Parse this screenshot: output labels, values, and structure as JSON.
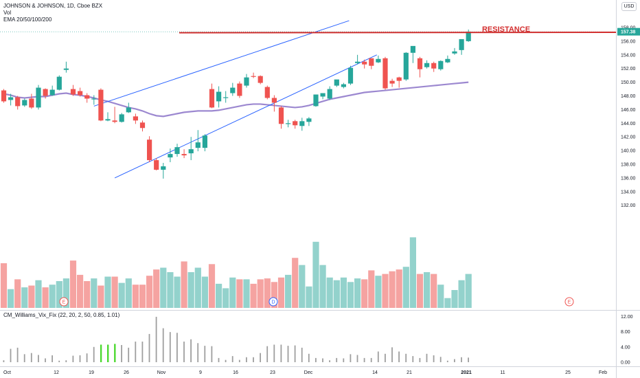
{
  "header": {
    "symbol_line": "JOHNSON & JOHNSON, 1D, Cboe BZX",
    "vol_label": "Vol",
    "ema_label": "EMA 20/50/100/200",
    "currency": "USD"
  },
  "indicator": {
    "label": "CM_Williams_Vix_Fix (22, 20, 2, 50, 0.85, 1.01)",
    "y_ticks": [
      "12.00",
      "8.00",
      "4.00",
      "0.00"
    ]
  },
  "annotations": {
    "resistance_label": "RESISTANCE",
    "last_price_label": "157.38",
    "earnings_marker": "E",
    "dividend_marker": "D"
  },
  "colors": {
    "up": "#26a69a",
    "down": "#ef5350",
    "vol_up": "#93d2cc",
    "vol_down": "#f5a3a1",
    "ema": "#9c88d0",
    "channel": "#2962ff",
    "resistance": "#d32f2f",
    "vix_normal": "#9e9e9e",
    "vix_high": "#4cd930"
  },
  "chart_data": {
    "type": "candlestick",
    "price_ticks": [
      "158.00",
      "156.00",
      "154.00",
      "152.00",
      "150.00",
      "148.00",
      "146.00",
      "144.00",
      "142.00",
      "140.00",
      "138.00",
      "136.00",
      "134.00",
      "132.00"
    ],
    "x_ticks": [
      "Oct",
      "12",
      "19",
      "26",
      "Nov",
      "9",
      "16",
      "23",
      "Dec",
      "14",
      "21",
      "2021",
      "11",
      "25",
      "Feb"
    ],
    "resistance_price": 157.38,
    "ohlc": [
      [
        148.8,
        149.0,
        147.0,
        147.2
      ],
      [
        147.4,
        148.3,
        146.6,
        147.8
      ],
      [
        147.8,
        148.0,
        146.0,
        146.5
      ],
      [
        146.6,
        147.6,
        146.4,
        147.4
      ],
      [
        147.6,
        148.3,
        146.1,
        146.3
      ],
      [
        146.3,
        149.6,
        146.0,
        149.2
      ],
      [
        149.0,
        149.1,
        147.6,
        148.0
      ],
      [
        148.1,
        149.5,
        148.0,
        148.9
      ],
      [
        148.9,
        151.0,
        148.8,
        150.8
      ],
      [
        151.8,
        153.0,
        151.4,
        152.0
      ],
      [
        149.0,
        149.6,
        148.0,
        148.2
      ],
      [
        148.7,
        149.2,
        147.9,
        148.1
      ],
      [
        148.1,
        148.4,
        147.0,
        147.6
      ],
      [
        147.6,
        148.1,
        146.7,
        147.6
      ],
      [
        148.9,
        149.1,
        144.3,
        144.4
      ],
      [
        144.4,
        145.6,
        144.3,
        144.6
      ],
      [
        144.4,
        146.4,
        144.0,
        144.2
      ],
      [
        144.2,
        145.5,
        144.1,
        145.3
      ],
      [
        145.6,
        147.0,
        145.5,
        146.3
      ],
      [
        145.0,
        145.4,
        143.9,
        144.4
      ],
      [
        144.1,
        144.4,
        142.8,
        143.3
      ],
      [
        141.6,
        142.1,
        138.3,
        138.6
      ],
      [
        138.6,
        138.9,
        137.1,
        137.2
      ],
      [
        137.2,
        138.2,
        135.9,
        137.7
      ],
      [
        139.0,
        140.3,
        138.3,
        139.5
      ],
      [
        139.5,
        141.0,
        139.1,
        140.5
      ],
      [
        139.5,
        140.2,
        138.9,
        139.3
      ],
      [
        139.6,
        142.0,
        138.6,
        140.2
      ],
      [
        140.4,
        143.0,
        139.9,
        141.2
      ],
      [
        140.4,
        142.4,
        139.9,
        142.2
      ],
      [
        149.0,
        149.8,
        146.2,
        146.3
      ],
      [
        147.2,
        149.4,
        146.3,
        148.6
      ],
      [
        147.7,
        148.7,
        147.0,
        147.8
      ],
      [
        148.4,
        149.9,
        148.0,
        149.2
      ],
      [
        149.8,
        150.1,
        147.7,
        148.0
      ],
      [
        149.5,
        151.2,
        149.2,
        150.7
      ],
      [
        150.9,
        151.4,
        150.6,
        150.8
      ],
      [
        150.9,
        151.0,
        149.7,
        149.9
      ],
      [
        149.3,
        149.5,
        147.5,
        147.7
      ],
      [
        147.7,
        148.1,
        145.7,
        147.0
      ],
      [
        146.3,
        146.5,
        143.2,
        143.9
      ],
      [
        143.9,
        144.5,
        143.4,
        144.0
      ],
      [
        144.3,
        144.5,
        143.2,
        143.7
      ],
      [
        143.6,
        144.8,
        142.9,
        144.3
      ],
      [
        144.2,
        144.9,
        143.6,
        144.7
      ],
      [
        146.5,
        148.2,
        146.4,
        148.2
      ],
      [
        147.9,
        148.3,
        147.5,
        148.4
      ],
      [
        147.6,
        149.4,
        147.4,
        149.0
      ],
      [
        149.5,
        150.3,
        149.3,
        150.4
      ],
      [
        149.3,
        149.9,
        149.1,
        149.7
      ],
      [
        149.8,
        152.4,
        149.6,
        152.1
      ],
      [
        152.8,
        154.0,
        152.6,
        153.0
      ],
      [
        153.0,
        153.3,
        152.0,
        152.6
      ],
      [
        153.5,
        153.5,
        151.9,
        152.4
      ],
      [
        152.9,
        153.9,
        152.8,
        153.4
      ],
      [
        153.5,
        153.7,
        148.9,
        149.1
      ],
      [
        150.2,
        150.5,
        149.3,
        149.8
      ],
      [
        150.7,
        150.8,
        149.2,
        150.2
      ],
      [
        150.4,
        154.4,
        150.2,
        154.3
      ],
      [
        154.3,
        155.1,
        152.8,
        155.3
      ],
      [
        153.5,
        153.7,
        150.7,
        151.9
      ],
      [
        152.2,
        153.2,
        152.0,
        152.8
      ],
      [
        152.8,
        153.0,
        151.5,
        152.0
      ],
      [
        151.9,
        153.2,
        151.7,
        153.1
      ],
      [
        152.9,
        153.9,
        152.8,
        153.4
      ],
      [
        154.2,
        155.0,
        154.0,
        154.5
      ],
      [
        154.7,
        156.2,
        154.0,
        156.3
      ],
      [
        156.0,
        157.7,
        155.9,
        157.4
      ]
    ],
    "volume": [
      5.0,
      2.1,
      3.2,
      2.3,
      2.5,
      3.1,
      2.3,
      2.6,
      3.0,
      3.3,
      5.3,
      3.7,
      3.0,
      3.3,
      2.5,
      3.5,
      3.5,
      2.8,
      3.3,
      2.6,
      2.6,
      3.6,
      4.3,
      4.5,
      4.0,
      3.5,
      5.2,
      4.0,
      4.5,
      3.5,
      4.9,
      2.7,
      2.2,
      3.4,
      3.2,
      3.2,
      2.7,
      3.2,
      3.3,
      2.9,
      3.4,
      3.7,
      5.6,
      4.8,
      2.4,
      7.4,
      4.8,
      3.4,
      3.1,
      3.4,
      2.9,
      3.3,
      3.2,
      4.2,
      3.6,
      3.8,
      4.1,
      4.3,
      4.6,
      7.9,
      3.8,
      4.0,
      3.8,
      2.6,
      1.1,
      2.0,
      3.1,
      3.8
    ],
    "ema": [
      148.3,
      148.1,
      147.8,
      147.7,
      147.8,
      147.9,
      147.9,
      148.1,
      148.3,
      148.4,
      148.2,
      148.1,
      147.9,
      147.7,
      147.4,
      147.2,
      146.9,
      146.6,
      146.3,
      146.1,
      145.8,
      145.4,
      145.1,
      145.0,
      145.2,
      145.4,
      145.6,
      145.7,
      145.8,
      145.8,
      145.8,
      145.9,
      146.1,
      146.3,
      146.5,
      146.7,
      146.8,
      146.8,
      146.7,
      146.6,
      146.5,
      146.4,
      146.3,
      146.4,
      146.6,
      146.9,
      147.2,
      147.5,
      147.7,
      147.9,
      148.1,
      148.3,
      148.5,
      148.6,
      148.7,
      148.8,
      148.9,
      149.0,
      149.1,
      149.2,
      149.3,
      149.4,
      149.5,
      149.6,
      149.7,
      149.8,
      149.9,
      150.0
    ],
    "vix": [
      0.5,
      3.5,
      3.8,
      2.1,
      2.4,
      1.9,
      1.0,
      1.8,
      0.4,
      0.5,
      1.7,
      1.8,
      2.3,
      4.0,
      4.6,
      4.6,
      4.8,
      4.5,
      3.8,
      5.4,
      5.4,
      7.4,
      11.9,
      8.9,
      7.9,
      7.7,
      5.4,
      6.0,
      5.0,
      4.3,
      4.2,
      1.1,
      0.6,
      1.6,
      0.6,
      1.3,
      1.3,
      2.4,
      4.2,
      4.6,
      4.6,
      4.3,
      4.4,
      3.8,
      2.2,
      1.1,
      1.0,
      0.5,
      1.1,
      1.0,
      2.1,
      1.9,
      1.1,
      1.1,
      2.8,
      2.2,
      3.9,
      2.8,
      2.2,
      1.6,
      1.1,
      2.2,
      1.8,
      1.4,
      0.4,
      0.8,
      1.3,
      1.2
    ],
    "vix_highlight_index_range": [
      14,
      16
    ],
    "channel": {
      "upper": [
        [
          13,
          146.5
        ],
        [
          49,
          159.0
        ]
      ],
      "lower": [
        [
          16,
          136.0
        ],
        [
          53,
          154.0
        ]
      ]
    }
  }
}
